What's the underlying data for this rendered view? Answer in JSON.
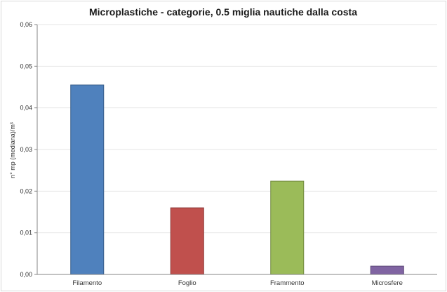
{
  "chart_data": {
    "type": "bar",
    "title": "Microplastiche - categorie, 0.5 miglia nautiche dalla costa",
    "xlabel": "",
    "ylabel": "n° mp (mediana)/m³",
    "categories": [
      "Filamento",
      "Foglio",
      "Frammento",
      "Microsfere"
    ],
    "values": [
      0.0455,
      0.016,
      0.0224,
      0.002
    ],
    "colors": [
      "#4f81bd",
      "#c0504d",
      "#9bbb59",
      "#8064a2"
    ],
    "border_colors": [
      "#385d8a",
      "#8c3836",
      "#71893f",
      "#5c4776"
    ],
    "ylim": [
      0,
      0.06
    ],
    "yticks": [
      "0,00",
      "0,01",
      "0,02",
      "0,03",
      "0,04",
      "0,05",
      "0,06"
    ],
    "grid": true,
    "legend": "none"
  }
}
